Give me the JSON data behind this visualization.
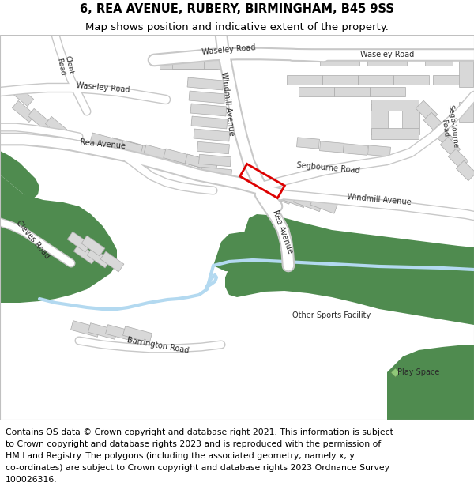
{
  "title": "6, REA AVENUE, RUBERY, BIRMINGHAM, B45 9SS",
  "subtitle": "Map shows position and indicative extent of the property.",
  "footer_lines": [
    "Contains OS data © Crown copyright and database right 2021. This information is subject",
    "to Crown copyright and database rights 2023 and is reproduced with the permission of",
    "HM Land Registry. The polygons (including the associated geometry, namely x, y",
    "co-ordinates) are subject to Crown copyright and database rights 2023 Ordnance Survey",
    "100026316."
  ],
  "title_fontsize": 10.5,
  "subtitle_fontsize": 9.5,
  "footer_fontsize": 7.8,
  "fig_width": 6.0,
  "fig_height": 6.25,
  "dpi": 100,
  "map_bg_color": "#f2f0ed",
  "green_color": "#4f8b4f",
  "water_color": "#b3d9f0",
  "plot_color": "#dd0000",
  "title_color": "#000000",
  "road_white": "#ffffff",
  "road_gray": "#c8c8c8",
  "building_fill": "#d8d8d8",
  "building_edge": "#aaaaaa"
}
